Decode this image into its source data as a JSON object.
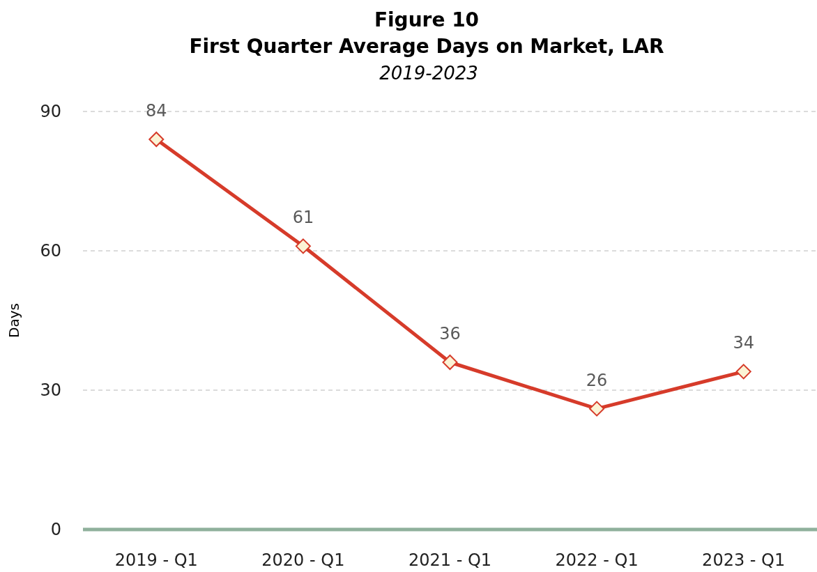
{
  "chart_data": {
    "type": "line",
    "title": "Figure 10\nFirst Quarter Average Days on Market, LAR",
    "subtitle": "2019-2023",
    "ylabel": "Days",
    "categories": [
      "2019 - Q1",
      "2020 - Q1",
      "2021 - Q1",
      "2022 - Q1",
      "2023 - Q1"
    ],
    "series": [
      {
        "color": "#d63b2a",
        "values": [
          84,
          61,
          36,
          26,
          34
        ]
      }
    ],
    "ylim": [
      0,
      90
    ],
    "yticks": [
      0,
      30,
      60,
      90
    ],
    "grid": "y",
    "marker": "diamond",
    "line_style": "solid",
    "data_labels": true
  }
}
